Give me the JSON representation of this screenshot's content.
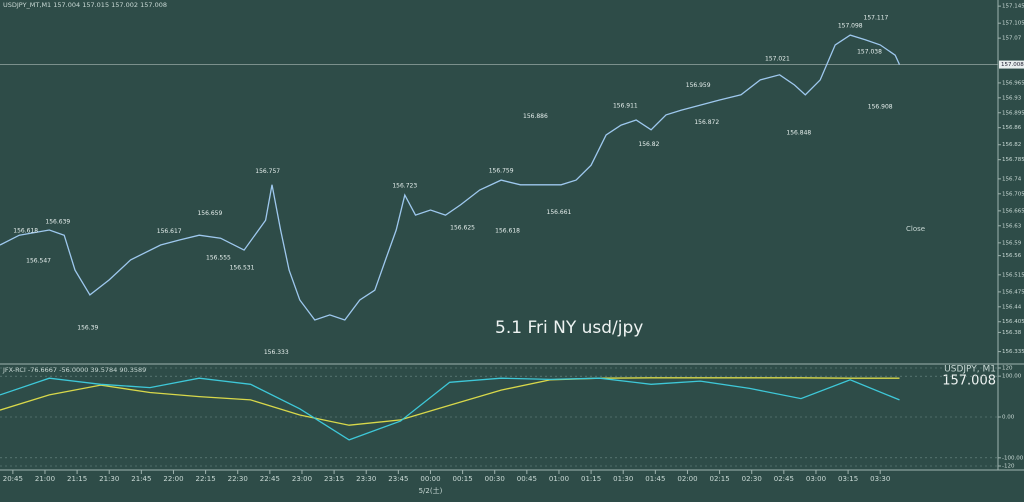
{
  "chart_data": [
    {
      "type": "line",
      "title": "5.1 Fri NY usd/jpy",
      "info": "USDJPY_MT,M1  157.004 157.015 157.002 157.008",
      "x": [
        -6,
        3,
        17,
        24,
        29,
        36,
        45,
        55,
        69,
        78,
        87,
        97,
        108,
        118,
        121,
        125,
        129,
        134,
        141,
        148,
        155,
        162,
        169,
        174,
        179,
        183,
        188,
        195,
        202,
        209,
        218,
        228,
        237,
        246,
        256,
        263,
        270,
        277,
        284,
        291,
        298,
        305,
        312,
        321,
        330,
        340,
        349,
        358,
        365,
        370,
        377,
        384,
        391,
        398,
        405,
        412,
        414
      ],
      "series": [
        {
          "color": "#9ec8ee",
          "values": [
            156.585,
            156.608,
            156.62,
            156.608,
            156.526,
            156.468,
            156.503,
            156.55,
            156.585,
            156.597,
            156.608,
            156.601,
            156.573,
            156.643,
            156.726,
            156.62,
            156.526,
            156.456,
            156.409,
            156.421,
            156.409,
            156.456,
            156.479,
            156.55,
            156.62,
            156.702,
            156.655,
            156.667,
            156.655,
            156.679,
            156.714,
            156.737,
            156.726,
            156.726,
            156.726,
            156.737,
            156.772,
            156.843,
            156.866,
            156.878,
            156.855,
            156.89,
            156.901,
            156.913,
            156.925,
            156.937,
            156.972,
            156.984,
            156.96,
            156.937,
            156.972,
            157.054,
            157.077,
            157.066,
            157.054,
            157.03,
            157.008
          ]
        }
      ],
      "price_labels": {
        "x": [
          6,
          21,
          12,
          73,
          92,
          96,
          107,
          119,
          35,
          123,
          183,
          210,
          228,
          231,
          255,
          244,
          286,
          297,
          320,
          324,
          357,
          367,
          391,
          403,
          400,
          405
        ],
        "values": [
          156.618,
          156.639,
          156.547,
          156.617,
          156.659,
          156.555,
          156.531,
          156.757,
          156.39,
          156.333,
          156.723,
          156.625,
          156.759,
          156.618,
          156.661,
          156.886,
          156.911,
          156.82,
          156.959,
          156.872,
          157.021,
          156.848,
          157.098,
          157.117,
          157.038,
          156.908
        ]
      },
      "current_price": 157.008,
      "close_label": "Close",
      "xlim": [
        -6,
        460
      ],
      "xticks": [
        {
          "value": 0,
          "label": "20:45"
        },
        {
          "value": 15,
          "label": "21:00"
        },
        {
          "value": 30,
          "label": "21:15"
        },
        {
          "value": 45,
          "label": "21:30"
        },
        {
          "value": 60,
          "label": "21:45"
        },
        {
          "value": 75,
          "label": "22:00"
        },
        {
          "value": 90,
          "label": "22:15"
        },
        {
          "value": 105,
          "label": "22:30"
        },
        {
          "value": 120,
          "label": "22:45"
        },
        {
          "value": 135,
          "label": "23:00"
        },
        {
          "value": 150,
          "label": "23:15"
        },
        {
          "value": 165,
          "label": "23:30"
        },
        {
          "value": 180,
          "label": "23:45"
        },
        {
          "value": 195,
          "label": "00:00"
        },
        {
          "value": 210,
          "label": "00:15"
        },
        {
          "value": 225,
          "label": "00:30"
        },
        {
          "value": 240,
          "label": "00:45"
        },
        {
          "value": 255,
          "label": "01:00"
        },
        {
          "value": 270,
          "label": "01:15"
        },
        {
          "value": 285,
          "label": "01:30"
        },
        {
          "value": 300,
          "label": "01:45"
        },
        {
          "value": 315,
          "label": "02:00"
        },
        {
          "value": 330,
          "label": "02:15"
        },
        {
          "value": 345,
          "label": "02:30"
        },
        {
          "value": 360,
          "label": "02:45"
        },
        {
          "value": 375,
          "label": "03:00"
        },
        {
          "value": 390,
          "label": "03:15"
        },
        {
          "value": 405,
          "label": "03:30"
        }
      ],
      "date_label": {
        "value": 195,
        "label": "5/2(土)"
      },
      "ylim": [
        156.32,
        157.15
      ],
      "yticks": [
        157.145,
        157.105,
        157.07,
        156.965,
        156.93,
        156.895,
        156.86,
        156.82,
        156.785,
        156.74,
        156.705,
        156.665,
        156.63,
        156.59,
        156.56,
        156.515,
        156.475,
        156.44,
        156.405,
        156.38,
        156.335
      ]
    },
    {
      "type": "line",
      "title": "JFX-RCI -76.6667 -56.0000 39.5784 90.3589",
      "symbol": "USDJPY, M1",
      "x": [
        -6,
        17,
        41,
        64,
        87,
        111,
        134,
        157,
        181,
        204,
        228,
        251,
        274,
        298,
        321,
        344,
        368,
        391,
        414
      ],
      "series": [
        {
          "color": "#d8d84a",
          "values": [
            17,
            54,
            78,
            60,
            50,
            42,
            5,
            -20,
            -7,
            29,
            66,
            91,
            95,
            96,
            96,
            96,
            96,
            95,
            95
          ]
        },
        {
          "color": "#3ec8d8",
          "values": [
            54,
            95,
            80,
            72,
            95,
            80,
            20,
            -56,
            -10,
            85,
            95,
            92,
            95,
            80,
            88,
            70,
            45,
            91,
            42
          ]
        }
      ],
      "xlim": [
        -6,
        460
      ],
      "ylim": [
        -120,
        120
      ],
      "yticks": [
        120,
        {
          "value": 100,
          "label": "100.00"
        },
        {
          "value": 0,
          "label": "0.00"
        },
        {
          "value": -100,
          "label": "-100.00"
        },
        -120
      ]
    }
  ]
}
